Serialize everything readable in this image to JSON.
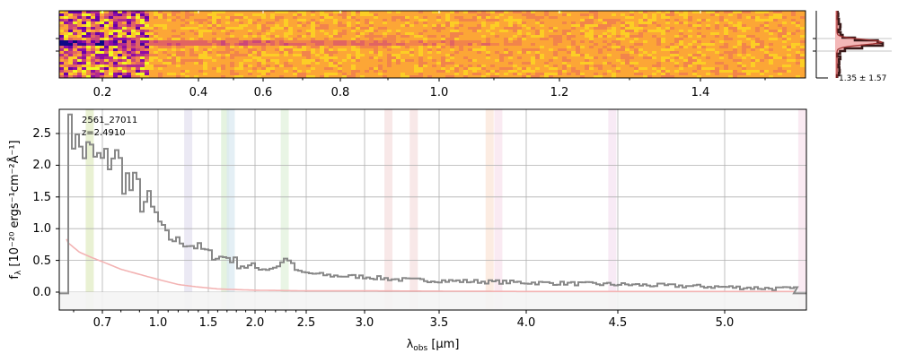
{
  "chart_data": [
    {
      "type": "heatmap",
      "panel": "2D spectrum",
      "x_ticks": [
        "0.2",
        "0.4",
        "0.6",
        "0.8",
        "1.0",
        "1.2",
        "1.4"
      ],
      "colormap": "plasma"
    },
    {
      "type": "line",
      "panel": "spatial profile",
      "annotation": "1.35 ± 1.57",
      "colors": {
        "step": "#3a1a1a",
        "fill": "#f4b8b8"
      }
    },
    {
      "type": "line",
      "panel": "1D spectrum",
      "annotations": [
        "2561_27011",
        "z=2.4910"
      ],
      "xlabel_main": "λ",
      "xlabel_sub": "obs",
      "xlabel_unit": "[μm]",
      "ylabel_main": "f",
      "ylabel_sub": "λ",
      "ylabel_unit": "[10⁻²⁰ ergs⁻¹cm⁻²Å⁻¹]",
      "x_ticks": [
        "0.7",
        "1.0",
        "1.5",
        "2.0",
        "2.5",
        "3.0",
        "3.5",
        "4.0",
        "4.5",
        "5.0"
      ],
      "y_ticks": [
        "0.0",
        "0.5",
        "1.0",
        "1.5",
        "2.0",
        "2.5"
      ],
      "ylim": [
        -0.3,
        2.85
      ],
      "grid": true,
      "line_bands": [
        {
          "x": 0.656,
          "color": "#e2ecc4"
        },
        {
          "x": 1.3,
          "color": "#e4e1f0"
        },
        {
          "x": 1.68,
          "color": "#dcefd6"
        },
        {
          "x": 1.74,
          "color": "#dbe9f1"
        },
        {
          "x": 2.29,
          "color": "#e1f1dc"
        },
        {
          "x": 3.16,
          "color": "#f6e0e0"
        },
        {
          "x": 3.33,
          "color": "#f6e0e0"
        },
        {
          "x": 3.79,
          "color": "#fbe6d8"
        },
        {
          "x": 3.84,
          "color": "#f8e3ee"
        },
        {
          "x": 4.47,
          "color": "#f6e3f2"
        },
        {
          "x": 5.38,
          "color": "#f8e3ee"
        }
      ],
      "series": [
        {
          "color": "#888888",
          "x": [
            0.55,
            0.58,
            0.61,
            0.64,
            0.67,
            0.7,
            0.75,
            0.8,
            0.85,
            0.9,
            0.95,
            1.0,
            1.05,
            1.1,
            1.2,
            1.3,
            1.4,
            1.5,
            1.6,
            1.7,
            1.8,
            1.9,
            2.0,
            2.1,
            2.2,
            2.3,
            2.4,
            2.5,
            2.7,
            3.0,
            3.2,
            3.5,
            4.0,
            4.5,
            5.0,
            5.2,
            5.35
          ],
          "y": [
            2.4,
            2.5,
            2.3,
            2.2,
            2.1,
            2.0,
            2.2,
            1.9,
            1.6,
            1.55,
            1.25,
            1.1,
            0.95,
            0.85,
            0.8,
            0.75,
            0.7,
            0.6,
            0.55,
            0.55,
            0.45,
            0.4,
            0.38,
            0.36,
            0.4,
            0.55,
            0.32,
            0.3,
            0.26,
            0.24,
            0.2,
            0.18,
            0.15,
            0.12,
            0.08,
            0.06,
            0.05
          ]
        },
        {
          "color": "#f3b3b3",
          "x": [
            0.55,
            0.58,
            0.62,
            0.66,
            0.7,
            0.75,
            0.8,
            0.9,
            1.0,
            1.2,
            1.4,
            1.6,
            2.0,
            2.5,
            3.0,
            4.0,
            5.0,
            5.35
          ],
          "y": [
            1.12,
            0.78,
            0.63,
            0.55,
            0.48,
            0.42,
            0.36,
            0.28,
            0.2,
            0.12,
            0.08,
            0.05,
            0.03,
            0.02,
            0.02,
            0.01,
            0.01,
            0.01
          ]
        }
      ]
    }
  ]
}
